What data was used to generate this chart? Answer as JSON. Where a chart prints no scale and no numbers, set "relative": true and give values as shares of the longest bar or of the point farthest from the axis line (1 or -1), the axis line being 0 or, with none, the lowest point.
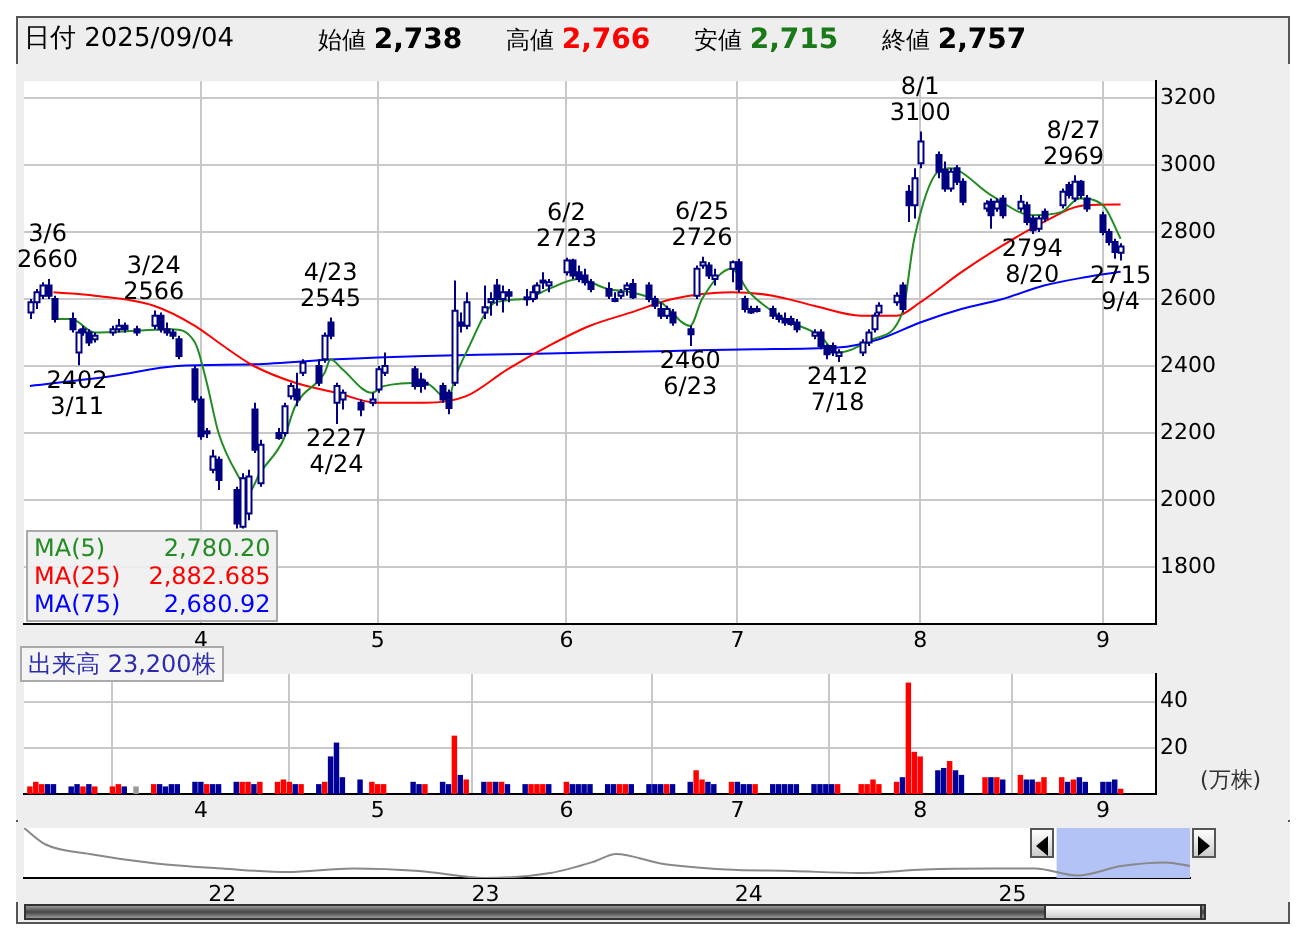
{
  "chart_data": [
    {
      "type": "candlestick",
      "title": "日付 2025/09/04",
      "annotations": [
        "始値 2,738",
        "高値 2,766",
        "安値 2,715",
        "終値 2,757",
        {
          "text": "3/6\n2660",
          "x": "2025-03-06",
          "y": 2660
        },
        {
          "text": "2402\n3/11",
          "x": "2025-03-11",
          "y": 2402
        },
        {
          "text": "3/24\n2566",
          "x": "2025-03-24",
          "y": 2566
        },
        {
          "text": "4/23\n2545",
          "x": "2025-04-23",
          "y": 2545
        },
        {
          "text": "2227\n4/24",
          "x": "2025-04-24",
          "y": 2227
        },
        {
          "text": "6/2\n2723",
          "x": "2025-06-02",
          "y": 2723
        },
        {
          "text": "2460\n6/23",
          "x": "2025-06-23",
          "y": 2460
        },
        {
          "text": "6/25\n2726",
          "x": "2025-06-25",
          "y": 2726
        },
        {
          "text": "2412\n7/18",
          "x": "2025-07-18",
          "y": 2412
        },
        {
          "text": "8/1\n3100",
          "x": "2025-08-01",
          "y": 3100
        },
        {
          "text": "2794\n8/20",
          "x": "2025-08-20",
          "y": 2794
        },
        {
          "text": "8/27\n2969",
          "x": "2025-08-27",
          "y": 2969
        },
        {
          "text": "2715\n9/4",
          "x": "2025-09-04",
          "y": 2715
        }
      ],
      "color": "#000080",
      "colors": [
        "#ffffff",
        "#ffffff",
        "#ffffff",
        "#000080",
        "#000080",
        "#000080",
        "#ffffff",
        "#000080",
        "#000080",
        "#ffffff",
        "#ffffff",
        "#ffffff",
        "#000080",
        "#000080",
        "#ffffff",
        "#000080",
        "#000080",
        "#000080",
        "#000080",
        "#000080",
        "#000080",
        "#ffffff",
        "#ffffff",
        "#000080",
        "#000080",
        "#ffffff",
        "#ffffff",
        "#000080",
        "#ffffff",
        "#000080",
        "#ffffff",
        "#ffffff",
        "#000080",
        "#ffffff",
        "#000080",
        "#ffffff",
        "#000080",
        "#ffffff",
        "#ffffff",
        "#000080",
        "#ffffff",
        "#ffffff",
        "#ffffff",
        "#000080",
        "#000080",
        "#000080",
        "#000080",
        "#000080",
        "#ffffff",
        "#000080",
        "#ffffff",
        "#ffffff",
        "#ffffff",
        "#000080",
        "#ffffff",
        "#000080",
        "#ffffff",
        "#ffffff",
        "#ffffff",
        "#ffffff",
        "#ffffff",
        "#ffffff",
        "#000080",
        "#000080",
        "#000080",
        "#000080",
        "#000080",
        "#ffffff",
        "#ffffff",
        "#ffffff",
        "#000080",
        "#000080",
        "#000080",
        "#000080",
        "#ffffff",
        "#000080",
        "#000080",
        "#ffffff",
        "#ffffff",
        "#000080",
        "#ffffff",
        "#ffffff",
        "#000080",
        "#000080",
        "#000080",
        "#000080",
        "#000080",
        "#000080",
        "#000080",
        "#000080",
        "#000080",
        "#ffffff",
        "#000080",
        "#000080",
        "#000080",
        "#ffffff",
        "#ffffff",
        "#ffffff",
        "#ffffff",
        "#ffffff",
        "#ffffff",
        "#000080",
        "#000080",
        "#ffffff",
        "#ffffff",
        "#000080",
        "#000080",
        "#ffffff",
        "#000080",
        "#000080",
        "#ffffff",
        "#000080",
        "#ffffff",
        "#000080",
        "#ffffff",
        "#000080",
        "#000080",
        "#ffffff",
        "#000080",
        "#ffffff",
        "#000080",
        "#ffffff",
        "#000080",
        "#000080",
        "#000080",
        "#000080",
        "#000080",
        "#ffffff"
      ],
      "x": [
        "2025-03-03",
        "2025-03-04",
        "2025-03-05",
        "2025-03-06",
        "2025-03-07",
        "2025-03-10",
        "2025-03-11",
        "2025-03-12",
        "2025-03-13",
        "2025-03-14",
        "2025-03-17",
        "2025-03-18",
        "2025-03-19",
        "2025-03-21",
        "2025-03-24",
        "2025-03-25",
        "2025-03-26",
        "2025-03-27",
        "2025-03-28",
        "2025-03-31",
        "2025-04-01",
        "2025-04-02",
        "2025-04-03",
        "2025-04-04",
        "2025-04-07",
        "2025-04-08",
        "2025-04-09",
        "2025-04-10",
        "2025-04-11",
        "2025-04-14",
        "2025-04-15",
        "2025-04-16",
        "2025-04-17",
        "2025-04-18",
        "2025-04-21",
        "2025-04-22",
        "2025-04-23",
        "2025-04-24",
        "2025-04-25",
        "2025-04-28",
        "2025-04-30",
        "2025-05-01",
        "2025-05-02",
        "2025-05-07",
        "2025-05-08",
        "2025-05-09",
        "2025-05-12",
        "2025-05-13",
        "2025-05-14",
        "2025-05-15",
        "2025-05-16",
        "2025-05-19",
        "2025-05-20",
        "2025-05-21",
        "2025-05-22",
        "2025-05-23",
        "2025-05-26",
        "2025-05-27",
        "2025-05-28",
        "2025-05-29",
        "2025-05-30",
        "2025-06-02",
        "2025-06-03",
        "2025-06-04",
        "2025-06-05",
        "2025-06-06",
        "2025-06-09",
        "2025-06-10",
        "2025-06-11",
        "2025-06-12",
        "2025-06-13",
        "2025-06-16",
        "2025-06-17",
        "2025-06-18",
        "2025-06-19",
        "2025-06-20",
        "2025-06-23",
        "2025-06-24",
        "2025-06-25",
        "2025-06-26",
        "2025-06-27",
        "2025-06-30",
        "2025-07-01",
        "2025-07-02",
        "2025-07-03",
        "2025-07-04",
        "2025-07-07",
        "2025-07-08",
        "2025-07-09",
        "2025-07-10",
        "2025-07-11",
        "2025-07-14",
        "2025-07-15",
        "2025-07-16",
        "2025-07-17",
        "2025-07-18",
        "2025-07-22",
        "2025-07-23",
        "2025-07-24",
        "2025-07-25",
        "2025-07-28",
        "2025-07-29",
        "2025-07-30",
        "2025-07-31",
        "2025-08-01",
        "2025-08-04",
        "2025-08-05",
        "2025-08-06",
        "2025-08-07",
        "2025-08-08",
        "2025-08-12",
        "2025-08-13",
        "2025-08-14",
        "2025-08-15",
        "2025-08-18",
        "2025-08-19",
        "2025-08-20",
        "2025-08-21",
        "2025-08-22",
        "2025-08-25",
        "2025-08-26",
        "2025-08-27",
        "2025-08-28",
        "2025-08-29",
        "2025-09-01",
        "2025-09-02",
        "2025-09-03",
        "2025-09-04"
      ],
      "ohlc": [
        [
          2560,
          2600,
          2540,
          2590
        ],
        [
          2590,
          2630,
          2570,
          2620
        ],
        [
          2610,
          2650,
          2600,
          2640
        ],
        [
          2640,
          2660,
          2600,
          2610
        ],
        [
          2600,
          2610,
          2530,
          2540
        ],
        [
          2540,
          2560,
          2500,
          2510
        ],
        [
          2440,
          2510,
          2402,
          2500
        ],
        [
          2510,
          2520,
          2490,
          2500
        ],
        [
          2500,
          2510,
          2460,
          2470
        ],
        [
          2480,
          2500,
          2470,
          2490
        ],
        [
          2500,
          2520,
          2490,
          2510
        ],
        [
          2510,
          2540,
          2500,
          2520
        ],
        [
          2520,
          2530,
          2500,
          2510
        ],
        [
          2510,
          2520,
          2490,
          2500
        ],
        [
          2520,
          2566,
          2510,
          2550
        ],
        [
          2550,
          2560,
          2500,
          2510
        ],
        [
          2510,
          2530,
          2490,
          2500
        ],
        [
          2500,
          2510,
          2480,
          2490
        ],
        [
          2480,
          2490,
          2420,
          2430
        ],
        [
          2390,
          2400,
          2290,
          2300
        ],
        [
          2300,
          2310,
          2180,
          2190
        ],
        [
          2200,
          2215,
          2185,
          2205
        ],
        [
          2090,
          2150,
          2080,
          2130
        ],
        [
          2120,
          2130,
          2030,
          2060
        ],
        [
          2030,
          2040,
          1915,
          1930
        ],
        [
          1920,
          2080,
          1915,
          2065
        ],
        [
          1960,
          2090,
          1940,
          2070
        ],
        [
          2270,
          2290,
          2140,
          2150
        ],
        [
          2050,
          2180,
          2040,
          2165
        ],
        [
          2200,
          2215,
          2180,
          2185
        ],
        [
          2200,
          2290,
          2190,
          2280
        ],
        [
          2310,
          2350,
          2300,
          2340
        ],
        [
          2330,
          2380,
          2280,
          2300
        ],
        [
          2380,
          2420,
          2370,
          2410
        ],
        [
          2400,
          2420,
          2340,
          2350
        ],
        [
          2420,
          2500,
          2410,
          2490
        ],
        [
          2530,
          2545,
          2480,
          2490
        ],
        [
          2290,
          2350,
          2227,
          2340
        ],
        [
          2300,
          2330,
          2270,
          2320
        ],
        [
          2290,
          2300,
          2250,
          2270
        ],
        [
          2290,
          2320,
          2280,
          2300
        ],
        [
          2330,
          2400,
          2320,
          2390
        ],
        [
          2380,
          2440,
          2370,
          2400
        ],
        [
          2390,
          2400,
          2330,
          2340
        ],
        [
          2360,
          2380,
          2320,
          2340
        ],
        [
          2350,
          2360,
          2330,
          2345
        ],
        [
          2340,
          2350,
          2290,
          2300
        ],
        [
          2320,
          2330,
          2256,
          2275
        ],
        [
          2350,
          2655,
          2340,
          2565
        ],
        [
          2530,
          2560,
          2500,
          2520
        ],
        [
          2520,
          2620,
          2510,
          2590
        ],
        [
          2560,
          2640,
          2540,
          2575
        ],
        [
          2590,
          2620,
          2550,
          2600
        ],
        [
          2640,
          2660,
          2580,
          2600
        ],
        [
          2600,
          2640,
          2560,
          2620
        ],
        [
          2620,
          2630,
          2590,
          2610
        ],
        [
          2600,
          2630,
          2580,
          2605
        ],
        [
          2600,
          2640,
          2590,
          2620
        ],
        [
          2620,
          2650,
          2600,
          2640
        ],
        [
          2650,
          2680,
          2630,
          2655
        ],
        [
          2640,
          2660,
          2620,
          2650
        ],
        [
          2680,
          2723,
          2670,
          2715
        ],
        [
          2715,
          2720,
          2660,
          2670
        ],
        [
          2680,
          2700,
          2650,
          2660
        ],
        [
          2670,
          2690,
          2640,
          2650
        ],
        [
          2650,
          2660,
          2620,
          2630
        ],
        [
          2630,
          2650,
          2600,
          2610
        ],
        [
          2600,
          2620,
          2590,
          2600
        ],
        [
          2610,
          2630,
          2600,
          2620
        ],
        [
          2630,
          2650,
          2610,
          2640
        ],
        [
          2645,
          2660,
          2600,
          2605
        ],
        [
          2640,
          2650,
          2590,
          2600
        ],
        [
          2600,
          2610,
          2570,
          2580
        ],
        [
          2570,
          2590,
          2540,
          2550
        ],
        [
          2550,
          2580,
          2540,
          2570
        ],
        [
          2560,
          2570,
          2520,
          2530
        ],
        [
          2510,
          2520,
          2460,
          2495
        ],
        [
          2610,
          2700,
          2600,
          2690
        ],
        [
          2700,
          2726,
          2690,
          2710
        ],
        [
          2700,
          2710,
          2660,
          2670
        ],
        [
          2660,
          2690,
          2640,
          2670
        ],
        [
          2690,
          2715,
          2650,
          2710
        ],
        [
          2710,
          2720,
          2620,
          2630
        ],
        [
          2600,
          2610,
          2560,
          2570
        ],
        [
          2570,
          2580,
          2555,
          2560
        ],
        [
          2570,
          2580,
          2560,
          2565
        ],
        [
          2570,
          2580,
          2540,
          2550
        ],
        [
          2550,
          2560,
          2530,
          2540
        ],
        [
          2540,
          2560,
          2520,
          2530
        ],
        [
          2540,
          2550,
          2520,
          2525
        ],
        [
          2530,
          2540,
          2500,
          2510
        ],
        [
          2490,
          2510,
          2480,
          2500
        ],
        [
          2500,
          2510,
          2450,
          2460
        ],
        [
          2460,
          2465,
          2420,
          2435
        ],
        [
          2460,
          2470,
          2430,
          2440
        ],
        [
          2430,
          2450,
          2412,
          2440
        ],
        [
          2440,
          2480,
          2430,
          2470
        ],
        [
          2470,
          2510,
          2460,
          2500
        ],
        [
          2510,
          2560,
          2500,
          2550
        ],
        [
          2560,
          2590,
          2550,
          2580
        ],
        [
          2590,
          2620,
          2580,
          2610
        ],
        [
          2640,
          2650,
          2560,
          2570
        ],
        [
          2920,
          2940,
          2830,
          2880
        ],
        [
          2880,
          2990,
          2840,
          2960
        ],
        [
          3005,
          3100,
          2990,
          3070
        ],
        [
          3030,
          3040,
          2960,
          2980
        ],
        [
          2985,
          3010,
          2920,
          2930
        ],
        [
          2930,
          2990,
          2920,
          2980
        ],
        [
          2990,
          3000,
          2940,
          2950
        ],
        [
          2950,
          2960,
          2880,
          2890
        ],
        [
          2870,
          2895,
          2860,
          2885
        ],
        [
          2890,
          2900,
          2810,
          2850
        ],
        [
          2870,
          2900,
          2860,
          2890
        ],
        [
          2900,
          2910,
          2840,
          2850
        ],
        [
          2870,
          2910,
          2860,
          2890
        ],
        [
          2880,
          2890,
          2820,
          2830
        ],
        [
          2840,
          2850,
          2794,
          2805
        ],
        [
          2810,
          2850,
          2800,
          2840
        ],
        [
          2860,
          2870,
          2830,
          2840
        ],
        [
          2880,
          2930,
          2870,
          2920
        ],
        [
          2940,
          2950,
          2900,
          2910
        ],
        [
          2900,
          2969,
          2890,
          2950
        ],
        [
          2950,
          2955,
          2900,
          2910
        ],
        [
          2900,
          2910,
          2860,
          2870
        ],
        [
          2850,
          2860,
          2790,
          2800
        ],
        [
          2800,
          2810,
          2760,
          2770
        ],
        [
          2770,
          2780,
          2720,
          2740
        ],
        [
          2738,
          2766,
          2715,
          2757
        ]
      ],
      "series": [
        {
          "type": "line",
          "name": "MA(5) 2,780.20",
          "color": "#228b22",
          "x": [
            "2025-03-07",
            "2025-03-10",
            "2025-03-14",
            "2025-03-21",
            "2025-03-27",
            "2025-03-31",
            "2025-04-02",
            "2025-04-04",
            "2025-04-08",
            "2025-04-09",
            "2025-04-11",
            "2025-04-15",
            "2025-04-17",
            "2025-04-22",
            "2025-04-23",
            "2025-04-25",
            "2025-04-30",
            "2025-05-02",
            "2025-05-09",
            "2025-05-13",
            "2025-05-14",
            "2025-05-16",
            "2025-05-21",
            "2025-05-26",
            "2025-05-30",
            "2025-06-04",
            "2025-06-09",
            "2025-06-13",
            "2025-06-18",
            "2025-06-23",
            "2025-06-25",
            "2025-06-30",
            "2025-07-03",
            "2025-07-09",
            "2025-07-15",
            "2025-07-18",
            "2025-07-24",
            "2025-07-29",
            "2025-07-31",
            "2025-08-04",
            "2025-08-06",
            "2025-08-13",
            "2025-08-20",
            "2025-08-25",
            "2025-08-28",
            "2025-09-01",
            "2025-09-04"
          ],
          "values": [
            2540,
            2540,
            2500,
            2505,
            2510,
            2470,
            2350,
            2200,
            2050,
            2020,
            2080,
            2180,
            2280,
            2380,
            2420,
            2390,
            2320,
            2340,
            2350,
            2300,
            2360,
            2440,
            2590,
            2600,
            2630,
            2660,
            2630,
            2620,
            2590,
            2520,
            2600,
            2690,
            2620,
            2540,
            2490,
            2440,
            2480,
            2560,
            2780,
            2980,
            2990,
            2910,
            2850,
            2860,
            2900,
            2880,
            2780
          ]
        },
        {
          "type": "line",
          "name": "MA(25) 2,882.685",
          "color": "#ff0000",
          "x": [
            "2025-03-07",
            "2025-03-14",
            "2025-03-24",
            "2025-03-31",
            "2025-04-04",
            "2025-04-10",
            "2025-04-17",
            "2025-04-24",
            "2025-05-01",
            "2025-05-09",
            "2025-05-16",
            "2025-05-23",
            "2025-05-30",
            "2025-06-06",
            "2025-06-13",
            "2025-06-20",
            "2025-06-30",
            "2025-07-07",
            "2025-07-14",
            "2025-07-22",
            "2025-07-28",
            "2025-08-01",
            "2025-08-08",
            "2025-08-15",
            "2025-08-22",
            "2025-08-29",
            "2025-09-04"
          ],
          "values": [
            2620,
            2610,
            2580,
            2520,
            2470,
            2400,
            2350,
            2320,
            2290,
            2290,
            2310,
            2390,
            2460,
            2520,
            2560,
            2600,
            2620,
            2610,
            2580,
            2550,
            2550,
            2590,
            2680,
            2760,
            2830,
            2880,
            2882
          ]
        },
        {
          "type": "line",
          "name": "MA(75) 2,680.92",
          "color": "#0000ff",
          "x": [
            "2025-03-03",
            "2025-03-17",
            "2025-03-28",
            "2025-04-10",
            "2025-04-24",
            "2025-05-09",
            "2025-05-23",
            "2025-06-06",
            "2025-06-20",
            "2025-07-04",
            "2025-07-18",
            "2025-07-25",
            "2025-08-01",
            "2025-08-08",
            "2025-08-15",
            "2025-08-22",
            "2025-08-29",
            "2025-09-04"
          ],
          "values": [
            2340,
            2370,
            2400,
            2405,
            2420,
            2430,
            2435,
            2440,
            2445,
            2450,
            2455,
            2480,
            2530,
            2570,
            2600,
            2640,
            2665,
            2681
          ]
        }
      ],
      "xlim": [
        "2025-03-02",
        "2025-09-10"
      ],
      "xticks": [
        {
          "value": "2025-04-01",
          "label": "4"
        },
        {
          "value": "2025-05-01",
          "label": "5"
        },
        {
          "value": "2025-06-02",
          "label": "6"
        },
        {
          "value": "2025-07-01",
          "label": "7"
        },
        {
          "value": "2025-08-01",
          "label": "8"
        },
        {
          "value": "2025-09-01",
          "label": "9"
        }
      ],
      "ylim": [
        1630,
        3250
      ],
      "yticks": [
        1800,
        2000,
        2200,
        2400,
        2600,
        2800,
        3000,
        3200
      ],
      "grid": true,
      "legend": "bottom left"
    },
    {
      "type": "bar",
      "title": "出来高 23,200株",
      "ylabel": "(万株)",
      "x": [
        "2025-03-03",
        "2025-03-04",
        "2025-03-05",
        "2025-03-06",
        "2025-03-07",
        "2025-03-10",
        "2025-03-11",
        "2025-03-12",
        "2025-03-13",
        "2025-03-14",
        "2025-03-17",
        "2025-03-18",
        "2025-03-19",
        "2025-03-21",
        "2025-03-24",
        "2025-03-25",
        "2025-03-26",
        "2025-03-27",
        "2025-03-28",
        "2025-03-31",
        "2025-04-01",
        "2025-04-02",
        "2025-04-03",
        "2025-04-04",
        "2025-04-07",
        "2025-04-08",
        "2025-04-09",
        "2025-04-10",
        "2025-04-11",
        "2025-04-14",
        "2025-04-15",
        "2025-04-16",
        "2025-04-17",
        "2025-04-18",
        "2025-04-21",
        "2025-04-22",
        "2025-04-23",
        "2025-04-24",
        "2025-04-25",
        "2025-04-28",
        "2025-04-30",
        "2025-05-01",
        "2025-05-02",
        "2025-05-07",
        "2025-05-08",
        "2025-05-09",
        "2025-05-12",
        "2025-05-13",
        "2025-05-14",
        "2025-05-15",
        "2025-05-16",
        "2025-05-19",
        "2025-05-20",
        "2025-05-21",
        "2025-05-22",
        "2025-05-23",
        "2025-05-26",
        "2025-05-27",
        "2025-05-28",
        "2025-05-29",
        "2025-05-30",
        "2025-06-02",
        "2025-06-03",
        "2025-06-04",
        "2025-06-05",
        "2025-06-06",
        "2025-06-09",
        "2025-06-10",
        "2025-06-11",
        "2025-06-12",
        "2025-06-13",
        "2025-06-16",
        "2025-06-17",
        "2025-06-18",
        "2025-06-19",
        "2025-06-20",
        "2025-06-23",
        "2025-06-24",
        "2025-06-25",
        "2025-06-26",
        "2025-06-27",
        "2025-06-30",
        "2025-07-01",
        "2025-07-02",
        "2025-07-03",
        "2025-07-04",
        "2025-07-07",
        "2025-07-08",
        "2025-07-09",
        "2025-07-10",
        "2025-07-11",
        "2025-07-14",
        "2025-07-15",
        "2025-07-16",
        "2025-07-17",
        "2025-07-18",
        "2025-07-22",
        "2025-07-23",
        "2025-07-24",
        "2025-07-25",
        "2025-07-28",
        "2025-07-29",
        "2025-07-30",
        "2025-07-31",
        "2025-08-01",
        "2025-08-04",
        "2025-08-05",
        "2025-08-06",
        "2025-08-07",
        "2025-08-08",
        "2025-08-12",
        "2025-08-13",
        "2025-08-14",
        "2025-08-15",
        "2025-08-18",
        "2025-08-19",
        "2025-08-20",
        "2025-08-21",
        "2025-08-22",
        "2025-08-25",
        "2025-08-26",
        "2025-08-27",
        "2025-08-28",
        "2025-08-29",
        "2025-09-01",
        "2025-09-02",
        "2025-09-03",
        "2025-09-04"
      ],
      "values": [
        3,
        5,
        4,
        4,
        4,
        3,
        4,
        3,
        4,
        3,
        3,
        4,
        3,
        3,
        4,
        4,
        3,
        4,
        4,
        5,
        5,
        4,
        4,
        4,
        5,
        5,
        5,
        4,
        5,
        5,
        6,
        5,
        4,
        4,
        4,
        5,
        16,
        22,
        7,
        6,
        5,
        4,
        4,
        5,
        4,
        4,
        5,
        4,
        25,
        8,
        6,
        5,
        5,
        5,
        5,
        4,
        4,
        4,
        4,
        4,
        4,
        5,
        4,
        4,
        4,
        4,
        4,
        4,
        4,
        4,
        4,
        4,
        4,
        4,
        4,
        4,
        5,
        10,
        6,
        5,
        4,
        5,
        5,
        4,
        4,
        4,
        4,
        4,
        4,
        4,
        4,
        4,
        4,
        4,
        4,
        4,
        4,
        4,
        6,
        4,
        5,
        7,
        48,
        18,
        16,
        10,
        11,
        14,
        10,
        8,
        7,
        7,
        7,
        6,
        8,
        6,
        6,
        5,
        7,
        7,
        5,
        6,
        7,
        5,
        5,
        5,
        6,
        2
      ],
      "colors": [
        "#ff0000",
        "#ff0000",
        "#ff0000",
        "#000099",
        "#000099",
        "#000099",
        "#000099",
        "#ff0000",
        "#000099",
        "#ff0000",
        "#ff0000",
        "#ff0000",
        "#000099",
        "#999999",
        "#ff0000",
        "#000099",
        "#000099",
        "#000099",
        "#000099",
        "#000099",
        "#000099",
        "#ff0000",
        "#000099",
        "#000099",
        "#000099",
        "#ff0000",
        "#ff0000",
        "#000099",
        "#ff0000",
        "#ff0000",
        "#ff0000",
        "#ff0000",
        "#000099",
        "#ff0000",
        "#000099",
        "#ff0000",
        "#000099",
        "#000099",
        "#000099",
        "#000099",
        "#ff0000",
        "#ff0000",
        "#ff0000",
        "#000099",
        "#000099",
        "#ff0000",
        "#000099",
        "#000099",
        "#ff0000",
        "#000099",
        "#ff0000",
        "#000099",
        "#ff0000",
        "#000099",
        "#ff0000",
        "#000099",
        "#000099",
        "#ff0000",
        "#ff0000",
        "#ff0000",
        "#000099",
        "#ff0000",
        "#000099",
        "#000099",
        "#000099",
        "#000099",
        "#000099",
        "#000099",
        "#ff0000",
        "#ff0000",
        "#000099",
        "#000099",
        "#000099",
        "#000099",
        "#ff0000",
        "#000099",
        "#000099",
        "#ff0000",
        "#ff0000",
        "#000099",
        "#000099",
        "#ff0000",
        "#000099",
        "#000099",
        "#000099",
        "#ff0000",
        "#000099",
        "#000099",
        "#000099",
        "#000099",
        "#000099",
        "#000099",
        "#000099",
        "#000099",
        "#000099",
        "#ff0000",
        "#ff0000",
        "#ff0000",
        "#ff0000",
        "#ff0000",
        "#ff0000",
        "#000099",
        "#ff0000",
        "#ff0000",
        "#ff0000",
        "#000099",
        "#000099",
        "#ff0000",
        "#000099",
        "#000099",
        "#ff0000",
        "#000099",
        "#ff0000",
        "#000099",
        "#ff0000",
        "#000099",
        "#000099",
        "#ff0000",
        "#ff0000",
        "#ff0000",
        "#000099",
        "#ff0000",
        "#000099",
        "#000099",
        "#000099",
        "#000099",
        "#000099",
        "#ff0000"
      ],
      "xlim": [
        "2025-03-02",
        "2025-09-10"
      ],
      "xticks": [
        {
          "value": "2025-04-01",
          "label": "4"
        },
        {
          "value": "2025-05-01",
          "label": "5"
        },
        {
          "value": "2025-06-02",
          "label": "6"
        },
        {
          "value": "2025-07-01",
          "label": "7"
        },
        {
          "value": "2025-08-01",
          "label": "8"
        },
        {
          "value": "2025-09-01",
          "label": "9"
        }
      ],
      "ylim": [
        0,
        52
      ],
      "yticks": [
        20,
        40
      ],
      "grid": true
    },
    {
      "type": "line",
      "relative": true,
      "color": "#888888",
      "tick_labels": "x",
      "x": [
        "2021-04-01",
        "2021-05-01",
        "2021-07-01",
        "2021-10-01",
        "2022-01-01",
        "2022-04-01",
        "2022-07-01",
        "2022-10-01",
        "2023-01-01",
        "2023-04-01",
        "2023-06-01",
        "2023-07-01",
        "2023-09-01",
        "2023-12-01",
        "2024-03-01",
        "2024-06-01",
        "2024-09-01",
        "2024-12-01",
        "2025-02-01",
        "2025-04-01",
        "2025-06-01",
        "2025-08-01",
        "2025-09-04"
      ],
      "values": [
        1,
        0.67,
        0.48,
        0.29,
        0.19,
        0.12,
        0.19,
        0.14,
        0,
        0.1,
        0.33,
        0.48,
        0.29,
        0.17,
        0.14,
        0.1,
        0.17,
        0.19,
        0.19,
        0.05,
        0.24,
        0.31,
        0.24
      ],
      "bands": [
        {
          "axis": "x",
          "from": "2025-03-03",
          "to": "2025-09-04",
          "color": "#b4c3f5"
        }
      ],
      "xlim": [
        "2021-04-01",
        "2025-09-04"
      ],
      "xticks": [
        {
          "value": "2022-01-01",
          "label": "22"
        },
        {
          "value": "2023-01-01",
          "label": "23"
        },
        {
          "value": "2024-01-01",
          "label": "24"
        },
        {
          "value": "2025-01-01",
          "label": "25"
        }
      ]
    }
  ]
}
